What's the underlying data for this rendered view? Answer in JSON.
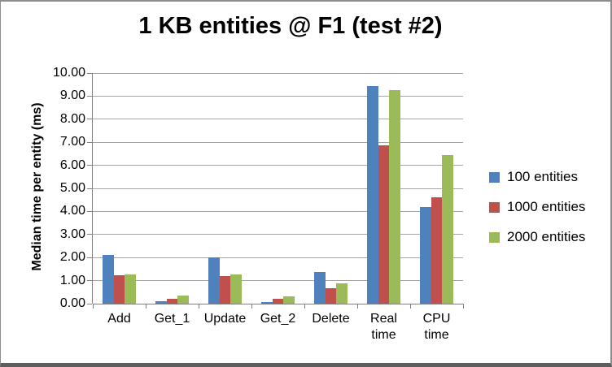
{
  "chart_data": {
    "type": "bar",
    "title": "1 KB entities @ F1 (test #2)",
    "ylabel": "Median time per entity (ms)",
    "xlabel": "",
    "ymin": 0,
    "ymax": 10,
    "ytick_step": 1,
    "ytick_labels": [
      "0.00",
      "1.00",
      "2.00",
      "3.00",
      "4.00",
      "5.00",
      "6.00",
      "7.00",
      "8.00",
      "9.00",
      "10.00"
    ],
    "categories": [
      "Add",
      "Get_1",
      "Update",
      "Get_2",
      "Delete",
      "Real time",
      "CPU time"
    ],
    "series": [
      {
        "name": "100 entities",
        "color": "#4F81BD",
        "values": [
          2.1,
          0.12,
          2.0,
          0.07,
          1.36,
          9.45,
          4.2
        ]
      },
      {
        "name": "1000 entities",
        "color": "#C0504D",
        "values": [
          1.23,
          0.21,
          1.2,
          0.2,
          0.66,
          6.88,
          4.6
        ]
      },
      {
        "name": "2000 entities",
        "color": "#9BBB59",
        "values": [
          1.27,
          0.35,
          1.27,
          0.33,
          0.88,
          9.25,
          6.45
        ]
      }
    ],
    "legend_position": "right",
    "grid": true
  },
  "colors": {
    "gridline": "#a6a6a6",
    "axis": "#808080",
    "text": "#000000",
    "background": "#ffffff",
    "frame_border": "#8d8d8d",
    "frame_border_bottom": "#5e5e5e"
  }
}
